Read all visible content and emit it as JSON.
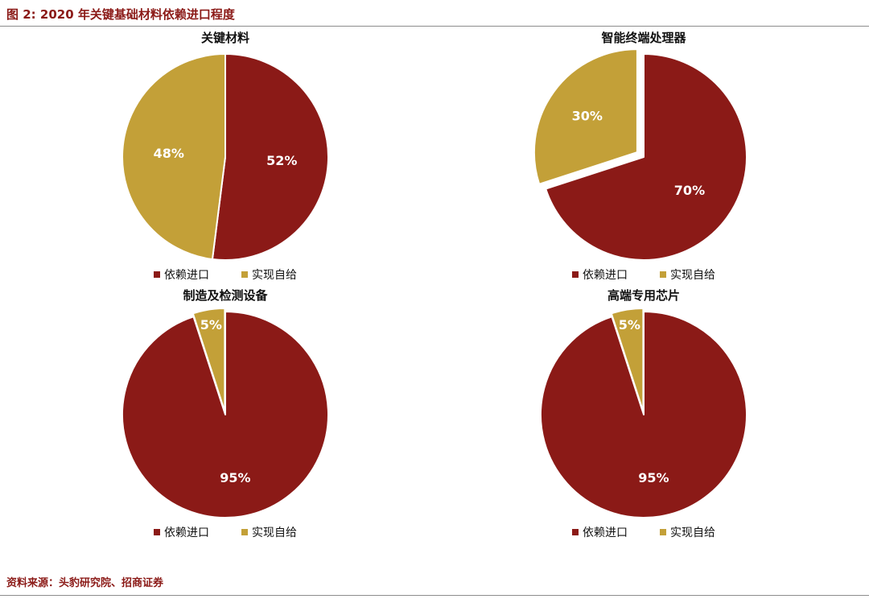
{
  "figure": {
    "title": "图 2: 2020 年关键基础材料依赖进口程度",
    "source": "资料来源：头豹研究院、招商证券"
  },
  "colors": {
    "import": "#8B1A17",
    "self": "#C3A038",
    "title_text": "#8B1A17",
    "source_text": "#8B1A17",
    "divider": "#8C8C8C",
    "chart_title_text": "#111111",
    "value_label_text": "#FFFFFF"
  },
  "chart_data": [
    {
      "type": "pie",
      "title": "关键材料",
      "labels": [
        "依赖进口",
        "实现自给"
      ],
      "values": [
        52,
        48
      ],
      "value_labels": [
        "52%",
        "48%"
      ],
      "colors_keys": [
        "import",
        "self"
      ],
      "start_deg": 0,
      "explode": [
        0,
        0
      ],
      "label_r": [
        0.55,
        0.55
      ],
      "legend_position": "bottom"
    },
    {
      "type": "pie",
      "title": "智能终端处理器",
      "labels": [
        "依赖进口",
        "实现自给"
      ],
      "values": [
        70,
        30
      ],
      "value_labels": [
        "70%",
        "30%"
      ],
      "colors_keys": [
        "import",
        "self"
      ],
      "start_deg": 0,
      "explode": [
        0,
        10
      ],
      "label_r": [
        0.55,
        0.6
      ],
      "legend_position": "bottom"
    },
    {
      "type": "pie",
      "title": "制造及检测设备",
      "labels": [
        "依赖进口",
        "实现自给"
      ],
      "values": [
        95,
        5
      ],
      "value_labels": [
        "95%",
        "5%"
      ],
      "colors_keys": [
        "import",
        "self"
      ],
      "start_deg": 0,
      "explode": [
        0,
        4
      ],
      "label_r": [
        0.62,
        0.85
      ],
      "legend_position": "bottom"
    },
    {
      "type": "pie",
      "title": "高端专用芯片",
      "labels": [
        "依赖进口",
        "实现自给"
      ],
      "values": [
        95,
        5
      ],
      "value_labels": [
        "95%",
        "5%"
      ],
      "colors_keys": [
        "import",
        "self"
      ],
      "start_deg": 0,
      "explode": [
        0,
        4
      ],
      "label_r": [
        0.62,
        0.85
      ],
      "legend_position": "bottom"
    }
  ]
}
